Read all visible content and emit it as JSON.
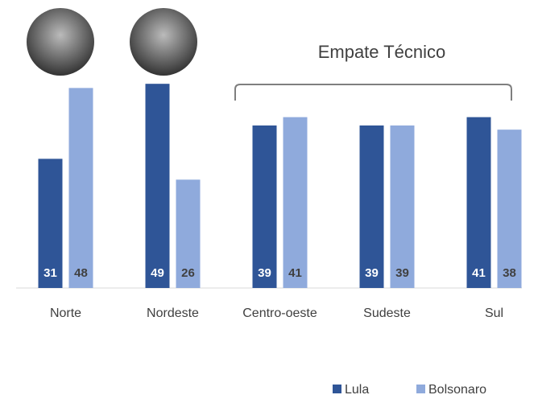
{
  "chart_data": {
    "type": "bar",
    "annotation": "Empate Técnico",
    "categories": [
      "Norte",
      "Nordeste",
      "Centro-oeste",
      "Sudeste",
      "Sul"
    ],
    "series": [
      {
        "name": "Lula",
        "color": "#2f5597",
        "values": [
          31,
          49,
          39,
          39,
          41
        ]
      },
      {
        "name": "Bolsonaro",
        "color": "#8faadc",
        "values": [
          48,
          26,
          41,
          39,
          38
        ]
      }
    ],
    "ylim": [
      0,
      50
    ]
  }
}
